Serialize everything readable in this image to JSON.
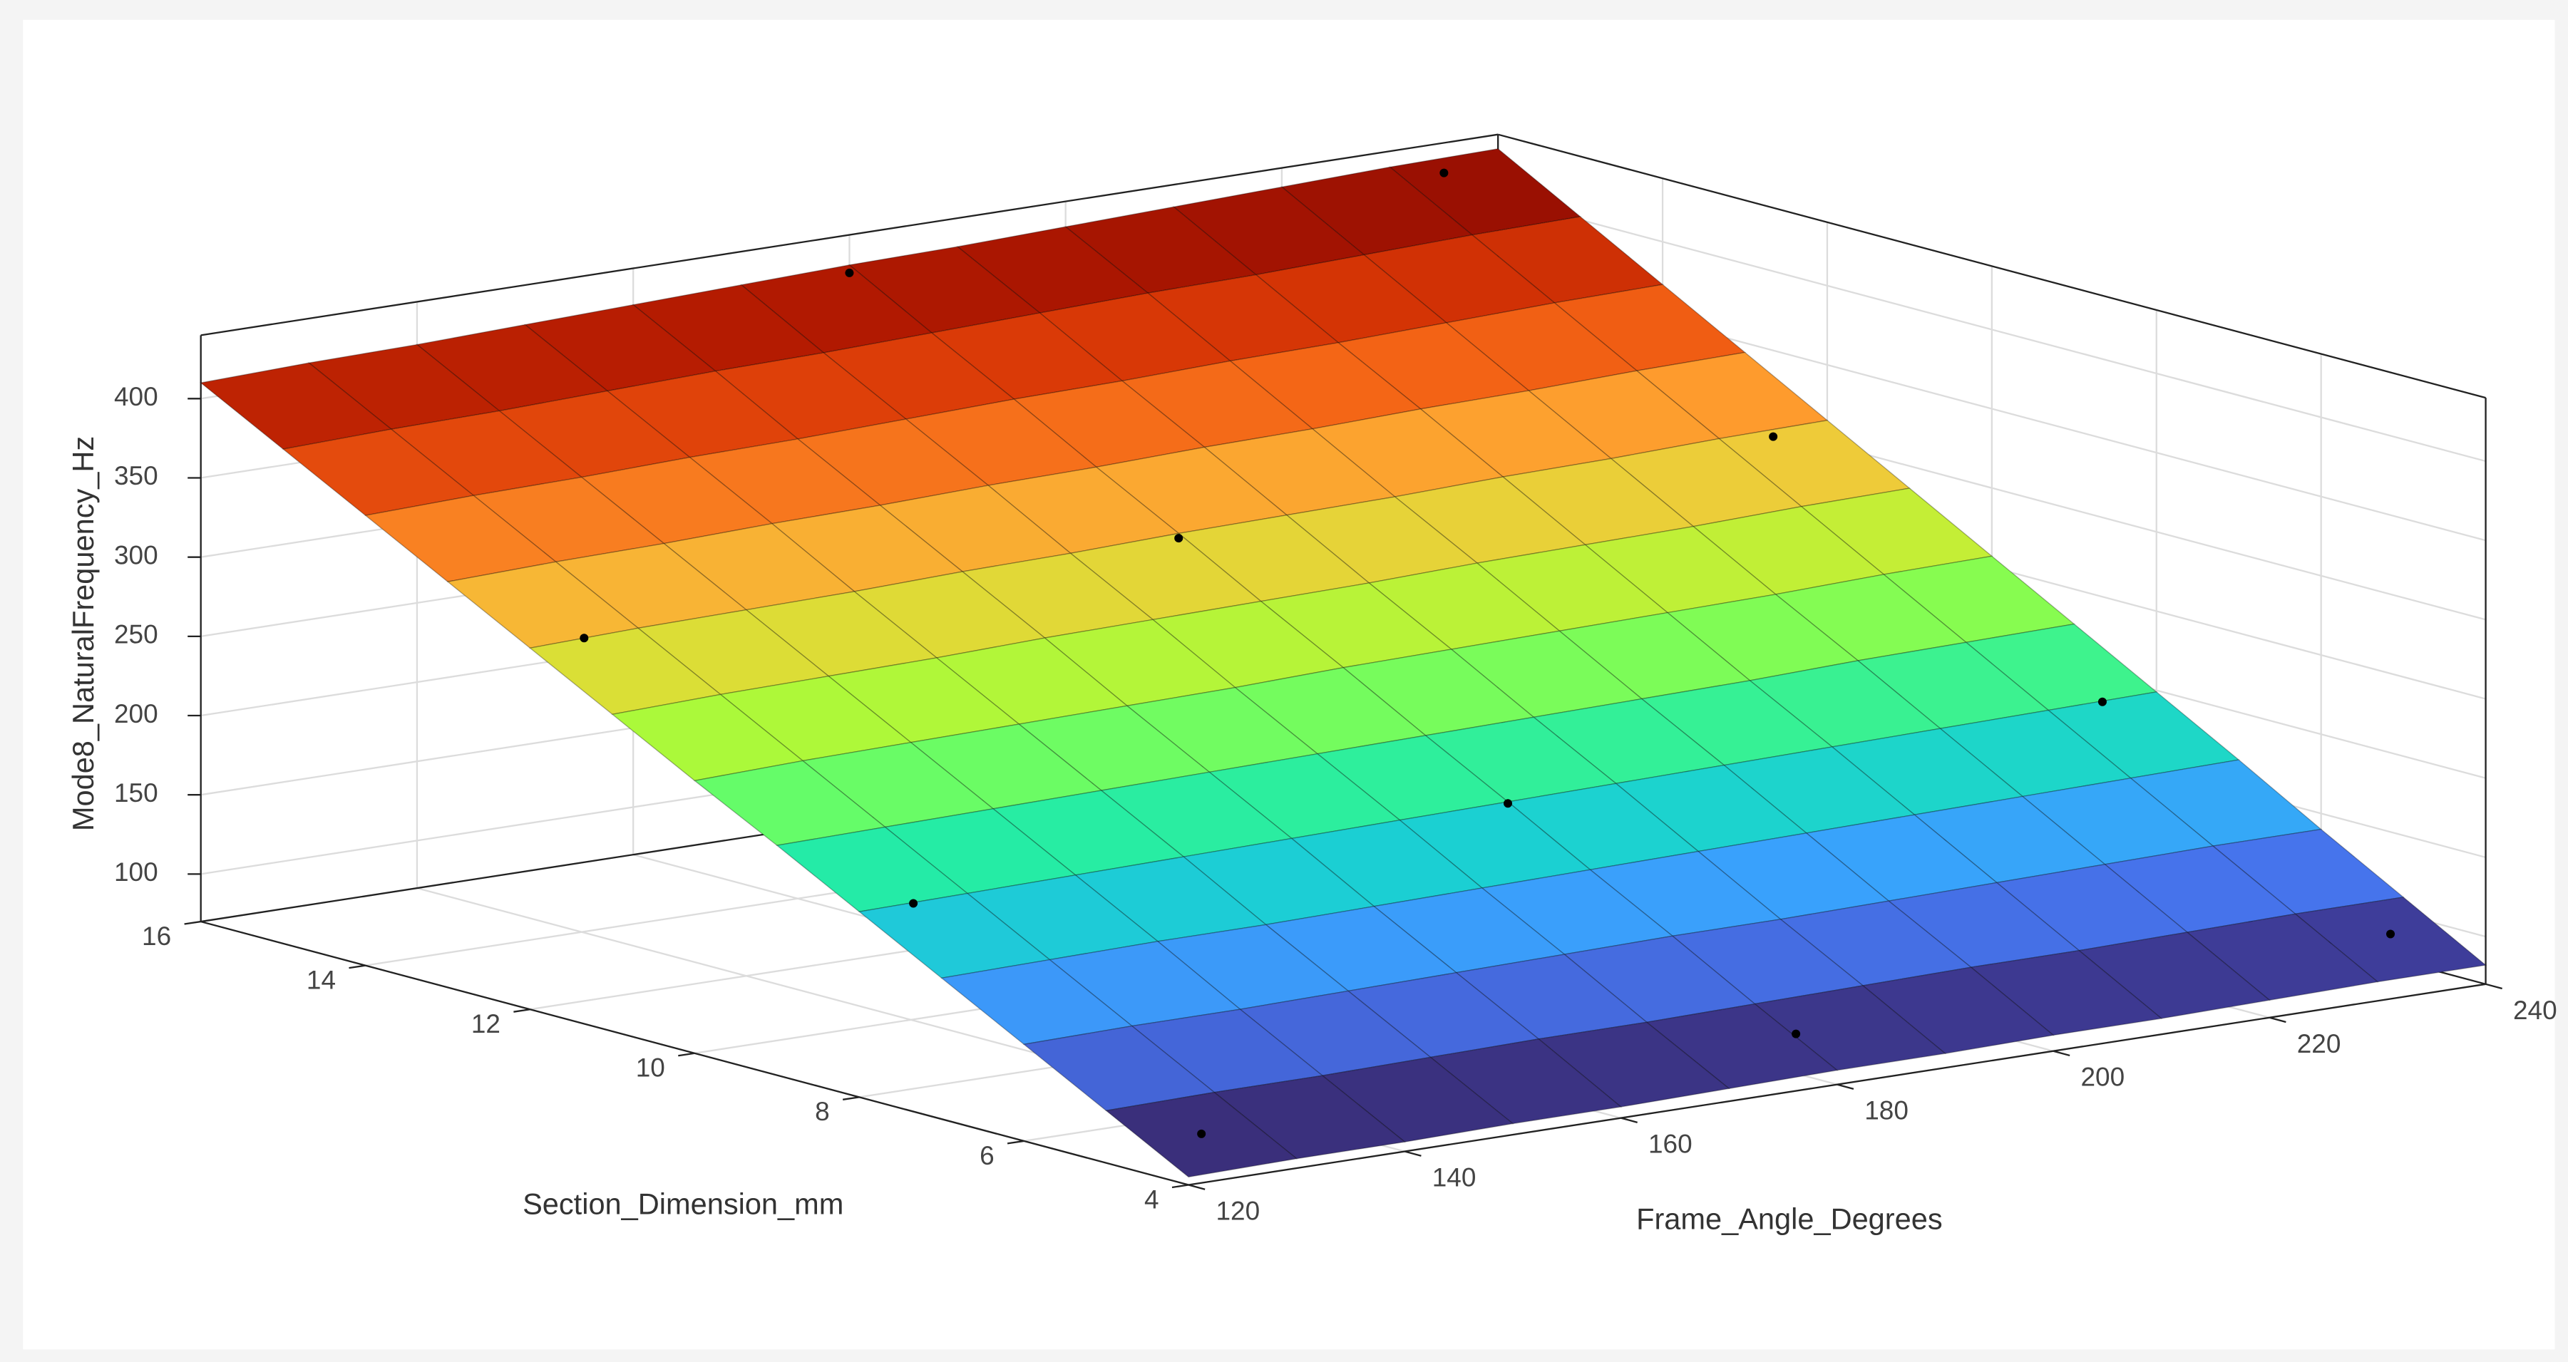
{
  "chart_data": {
    "type": "surface",
    "x_label": "Frame_Angle_Degrees",
    "y_label": "Section_Dimension_mm",
    "z_label": "Mode8_NaturalFrequency_Hz",
    "x": [
      120,
      130,
      140,
      150,
      160,
      170,
      180,
      190,
      200,
      210,
      220,
      230,
      240
    ],
    "y": [
      4,
      5,
      6,
      7,
      8,
      9,
      10,
      11,
      12,
      13,
      14,
      15,
      16
    ],
    "z": [
      [
        75,
        76,
        76,
        77,
        77,
        78,
        79,
        79,
        80,
        80,
        81,
        82,
        82
      ],
      [
        103,
        104,
        104,
        105,
        106,
        106,
        107,
        108,
        109,
        109,
        110,
        111,
        111
      ],
      [
        131,
        132,
        132,
        133,
        134,
        135,
        136,
        136,
        137,
        138,
        139,
        140,
        140
      ],
      [
        159,
        160,
        161,
        161,
        162,
        163,
        164,
        165,
        166,
        167,
        168,
        169,
        170
      ],
      [
        187,
        188,
        189,
        190,
        191,
        192,
        193,
        194,
        195,
        196,
        197,
        198,
        199
      ],
      [
        215,
        216,
        217,
        218,
        219,
        220,
        221,
        222,
        223,
        224,
        226,
        227,
        228
      ],
      [
        242,
        244,
        245,
        246,
        247,
        248,
        250,
        251,
        252,
        253,
        254,
        256,
        257
      ],
      [
        270,
        272,
        273,
        274,
        276,
        277,
        278,
        279,
        281,
        282,
        283,
        285,
        286
      ],
      [
        298,
        300,
        301,
        302,
        304,
        305,
        307,
        308,
        309,
        311,
        312,
        314,
        315
      ],
      [
        326,
        328,
        329,
        331,
        332,
        334,
        335,
        337,
        338,
        340,
        341,
        343,
        344
      ],
      [
        354,
        356,
        357,
        359,
        360,
        362,
        364,
        365,
        367,
        368,
        370,
        372,
        373
      ],
      [
        382,
        384,
        385,
        387,
        389,
        390,
        392,
        394,
        396,
        397,
        399,
        401,
        402
      ],
      [
        410,
        412,
        413,
        415,
        417,
        419,
        421,
        422,
        424,
        426,
        428,
        430,
        431
      ]
    ],
    "points": {
      "color": "#000000",
      "x": [
        125,
        125,
        125,
        180,
        235,
        180,
        180,
        180,
        235,
        235,
        235
      ],
      "y": [
        4.5,
        8,
        12,
        16,
        16,
        12,
        8,
        4.5,
        4.5,
        8,
        12
      ],
      "z": [
        90,
        187,
        299,
        416,
        421,
        304,
        192,
        95,
        100,
        198,
        310
      ]
    },
    "xlim": [
      120,
      240
    ],
    "ylim": [
      4,
      16
    ],
    "zlim": [
      70,
      440
    ],
    "xticks": [
      120,
      140,
      160,
      180,
      200,
      220,
      240
    ],
    "yticks": [
      4,
      6,
      8,
      10,
      12,
      14,
      16
    ],
    "zticks": [
      100,
      150,
      200,
      250,
      300,
      350,
      400
    ],
    "grid": true,
    "colormap": [
      "#30123b",
      "#4145ab",
      "#4675ed",
      "#39a2fc",
      "#1bcfd4",
      "#24eca6",
      "#61fc6c",
      "#a4fc3b",
      "#d1e834",
      "#f3c63a",
      "#fe9b2d",
      "#f36315",
      "#d93806",
      "#b11901",
      "#7a0403"
    ]
  }
}
